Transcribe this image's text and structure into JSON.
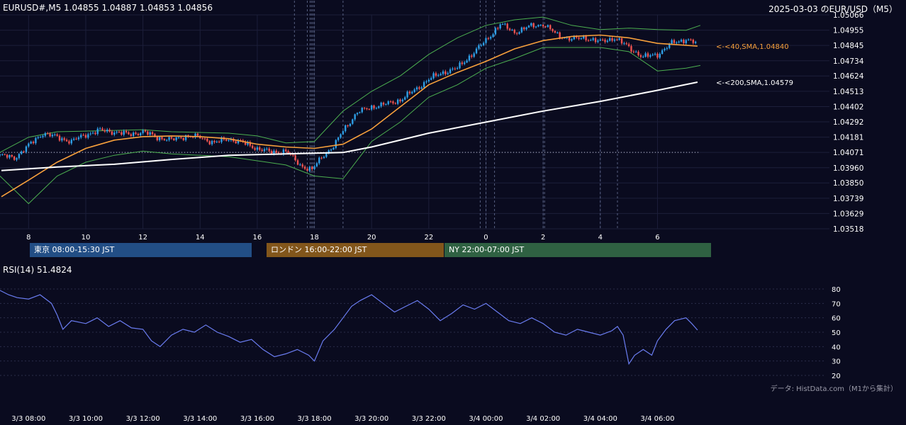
{
  "header": {
    "symbol_info": "EURUSD#,M5 1.04855 1.04887 1.04853 1.04856",
    "title": "2025-03-03 のEUR/USD（M5）"
  },
  "rsi_label": "RSI(14) 51.4824",
  "credit": "データ: HistData.com（M1から集計）",
  "sessions": {
    "tokyo": "東京 08:00-15:30 JST",
    "london": "ロンドン 16:00-22:00 JST",
    "ny": "NY 22:00-07:00 JST"
  },
  "colors": {
    "background": "#0a0b1f",
    "candle_up": "#2e9fe6",
    "candle_down": "#ef5350",
    "sma40": "#f7a03c",
    "sma200": "#ffffff",
    "bollinger": "#4caf50",
    "rsi_line": "#6a7cf0",
    "tokyo": "#224e85",
    "london": "#82561b",
    "ny": "#2f6142"
  },
  "chart_data": [
    {
      "type": "candlestick",
      "title": "2025-03-03 のEUR/USD（M5）",
      "y_ticks": [
        "1.05066",
        "1.04955",
        "1.04845",
        "1.04734",
        "1.04624",
        "1.04513",
        "1.04402",
        "1.04292",
        "1.04181",
        "1.04071",
        "1.03960",
        "1.03850",
        "1.03739",
        "1.03629",
        "1.03518"
      ],
      "ylim": [
        1.03518,
        1.05066
      ],
      "x_ticks": [
        "8",
        "10",
        "12",
        "14",
        "16",
        "18",
        "20",
        "22",
        "0",
        "2",
        "4",
        "6"
      ],
      "x_tick_hours": [
        8,
        10,
        12,
        14,
        16,
        18,
        20,
        22,
        24,
        26,
        28,
        30
      ],
      "xlim_hours": [
        7,
        31.8
      ],
      "last_close": 1.04856,
      "reference_line": 1.04071,
      "session_marker_hours": [
        17.3,
        17.75,
        17.85,
        17.9,
        17.95,
        18.0,
        19.0,
        23.8,
        24.0,
        24.3,
        26.0,
        26.05,
        28.0,
        28.6
      ],
      "series": [
        {
          "name": "SMA 40",
          "label": "<-<40,SMA,1.04840",
          "points": [
            [
              7.05,
              1.0375
            ],
            [
              8.0,
              1.0387
            ],
            [
              9.0,
              1.04
            ],
            [
              10.0,
              1.041
            ],
            [
              11.0,
              1.0416
            ],
            [
              12.0,
              1.04185
            ],
            [
              13.0,
              1.0419
            ],
            [
              14.0,
              1.04185
            ],
            [
              15.0,
              1.0417
            ],
            [
              16.0,
              1.0413
            ],
            [
              17.0,
              1.0411
            ],
            [
              18.0,
              1.041
            ],
            [
              19.0,
              1.0413
            ],
            [
              20.0,
              1.0424
            ],
            [
              21.0,
              1.044
            ],
            [
              22.0,
              1.0456
            ],
            [
              23.0,
              1.0465
            ],
            [
              24.0,
              1.0473
            ],
            [
              25.0,
              1.0482
            ],
            [
              26.0,
              1.0488
            ],
            [
              27.0,
              1.0491
            ],
            [
              28.0,
              1.0492
            ],
            [
              29.0,
              1.049
            ],
            [
              30.0,
              1.0486
            ],
            [
              31.4,
              1.0484
            ]
          ]
        },
        {
          "name": "SMA 200",
          "label": "<-<200,SMA,1.04579",
          "points": [
            [
              7.05,
              1.0394
            ],
            [
              9.0,
              1.03965
            ],
            [
              11.0,
              1.03985
            ],
            [
              13.0,
              1.0402
            ],
            [
              15.0,
              1.0405
            ],
            [
              17.0,
              1.0406
            ],
            [
              19.0,
              1.0407
            ],
            [
              20.0,
              1.0411
            ],
            [
              22.0,
              1.0421
            ],
            [
              24.0,
              1.0429
            ],
            [
              26.0,
              1.0437
            ],
            [
              28.0,
              1.0444
            ],
            [
              30.0,
              1.0452
            ],
            [
              31.4,
              1.04579
            ]
          ]
        }
      ],
      "bollinger": {
        "upper": [
          [
            7.0,
            1.04071
          ],
          [
            8.0,
            1.04181
          ],
          [
            9.0,
            1.0422
          ],
          [
            10.0,
            1.04225
          ],
          [
            11.0,
            1.0423
          ],
          [
            12.0,
            1.04235
          ],
          [
            13.0,
            1.0422
          ],
          [
            14.0,
            1.04215
          ],
          [
            15.0,
            1.0421
          ],
          [
            16.0,
            1.0419
          ],
          [
            17.0,
            1.0414
          ],
          [
            18.0,
            1.0415
          ],
          [
            19.0,
            1.0437
          ],
          [
            20.0,
            1.04513
          ],
          [
            21.0,
            1.04624
          ],
          [
            22.0,
            1.0478
          ],
          [
            23.0,
            1.049
          ],
          [
            24.0,
            1.0499
          ],
          [
            25.0,
            1.0503
          ],
          [
            26.0,
            1.0505
          ],
          [
            27.0,
            1.0499
          ],
          [
            28.0,
            1.0496
          ],
          [
            29.0,
            1.0497
          ],
          [
            30.0,
            1.0496
          ],
          [
            31.0,
            1.04955
          ],
          [
            31.5,
            1.0499
          ]
        ],
        "lower": [
          [
            7.0,
            1.039
          ],
          [
            8.0,
            1.037
          ],
          [
            9.0,
            1.039
          ],
          [
            10.0,
            1.04
          ],
          [
            11.0,
            1.0405
          ],
          [
            12.0,
            1.0408
          ],
          [
            13.0,
            1.0406
          ],
          [
            14.0,
            1.0405
          ],
          [
            15.0,
            1.0404
          ],
          [
            16.0,
            1.0401
          ],
          [
            17.0,
            1.0398
          ],
          [
            18.0,
            1.039
          ],
          [
            19.0,
            1.0388
          ],
          [
            20.0,
            1.0415
          ],
          [
            21.0,
            1.0429
          ],
          [
            22.0,
            1.0447
          ],
          [
            23.0,
            1.0456
          ],
          [
            24.0,
            1.0468
          ],
          [
            25.0,
            1.0475
          ],
          [
            26.0,
            1.0483
          ],
          [
            27.0,
            1.0483
          ],
          [
            28.0,
            1.0483
          ],
          [
            29.0,
            1.048
          ],
          [
            30.0,
            1.0466
          ],
          [
            31.0,
            1.0468
          ],
          [
            31.5,
            1.047
          ]
        ]
      },
      "price_path": [
        [
          7.0,
          1.0405
        ],
        [
          7.5,
          1.0403
        ],
        [
          8.0,
          1.0412
        ],
        [
          8.5,
          1.0421
        ],
        [
          9.0,
          1.0418
        ],
        [
          9.5,
          1.0415
        ],
        [
          10.0,
          1.042
        ],
        [
          10.5,
          1.0423
        ],
        [
          11.0,
          1.0422
        ],
        [
          11.5,
          1.042
        ],
        [
          12.0,
          1.0422
        ],
        [
          12.5,
          1.0418
        ],
        [
          13.0,
          1.0416
        ],
        [
          13.5,
          1.0419
        ],
        [
          14.0,
          1.0418
        ],
        [
          14.5,
          1.0414
        ],
        [
          15.0,
          1.0417
        ],
        [
          15.5,
          1.0414
        ],
        [
          16.0,
          1.041
        ],
        [
          16.5,
          1.0407
        ],
        [
          17.0,
          1.0408
        ],
        [
          17.5,
          1.0398
        ],
        [
          17.9,
          1.0394
        ],
        [
          18.3,
          1.0405
        ],
        [
          18.7,
          1.0412
        ],
        [
          19.0,
          1.0423
        ],
        [
          19.5,
          1.0436
        ],
        [
          20.0,
          1.044
        ],
        [
          20.5,
          1.0442
        ],
        [
          21.0,
          1.0445
        ],
        [
          21.5,
          1.0452
        ],
        [
          22.0,
          1.046
        ],
        [
          22.5,
          1.0465
        ],
        [
          23.0,
          1.0468
        ],
        [
          23.5,
          1.0478
        ],
        [
          24.0,
          1.0488
        ],
        [
          24.5,
          1.05
        ],
        [
          25.0,
          1.0494
        ],
        [
          25.5,
          1.0498
        ],
        [
          26.0,
          1.05
        ],
        [
          26.5,
          1.0492
        ],
        [
          27.0,
          1.0489
        ],
        [
          27.5,
          1.049
        ],
        [
          28.0,
          1.0487
        ],
        [
          28.5,
          1.049
        ],
        [
          29.0,
          1.0483
        ],
        [
          29.5,
          1.0476
        ],
        [
          30.0,
          1.0478
        ],
        [
          30.5,
          1.0486
        ],
        [
          31.0,
          1.0489
        ],
        [
          31.4,
          1.04856
        ]
      ]
    },
    {
      "type": "line",
      "name": "RSI(14)",
      "y_ticks": [
        "80",
        "70",
        "60",
        "50",
        "40",
        "30",
        "20"
      ],
      "ylim": [
        20,
        80
      ],
      "last_value": 51.4824,
      "x_tick_labels": [
        "3/3 08:00",
        "3/3 10:00",
        "3/3 12:00",
        "3/3 14:00",
        "3/3 16:00",
        "3/3 18:00",
        "3/3 20:00",
        "3/3 22:00",
        "3/4 00:00",
        "3/4 02:00",
        "3/4 04:00",
        "3/4 06:00"
      ],
      "x_tick_hours": [
        8,
        10,
        12,
        14,
        16,
        18,
        20,
        22,
        24,
        26,
        28,
        30
      ],
      "values": [
        [
          7.0,
          79
        ],
        [
          7.3,
          76
        ],
        [
          7.6,
          74
        ],
        [
          8.0,
          73
        ],
        [
          8.4,
          76
        ],
        [
          8.8,
          70
        ],
        [
          9.0,
          62
        ],
        [
          9.2,
          52
        ],
        [
          9.5,
          58
        ],
        [
          10.0,
          56
        ],
        [
          10.4,
          60
        ],
        [
          10.8,
          54
        ],
        [
          11.2,
          58
        ],
        [
          11.6,
          53
        ],
        [
          12.0,
          52
        ],
        [
          12.3,
          44
        ],
        [
          12.6,
          40
        ],
        [
          13.0,
          48
        ],
        [
          13.4,
          52
        ],
        [
          13.8,
          50
        ],
        [
          14.2,
          55
        ],
        [
          14.6,
          50
        ],
        [
          15.0,
          47
        ],
        [
          15.4,
          43
        ],
        [
          15.8,
          45
        ],
        [
          16.2,
          38
        ],
        [
          16.6,
          33
        ],
        [
          17.0,
          35
        ],
        [
          17.4,
          38
        ],
        [
          17.8,
          34
        ],
        [
          18.0,
          30
        ],
        [
          18.3,
          44
        ],
        [
          18.7,
          52
        ],
        [
          19.0,
          60
        ],
        [
          19.3,
          68
        ],
        [
          19.6,
          72
        ],
        [
          20.0,
          76
        ],
        [
          20.4,
          70
        ],
        [
          20.8,
          64
        ],
        [
          21.2,
          68
        ],
        [
          21.6,
          72
        ],
        [
          22.0,
          66
        ],
        [
          22.4,
          58
        ],
        [
          22.8,
          63
        ],
        [
          23.2,
          69
        ],
        [
          23.6,
          66
        ],
        [
          24.0,
          70
        ],
        [
          24.4,
          64
        ],
        [
          24.8,
          58
        ],
        [
          25.2,
          56
        ],
        [
          25.6,
          60
        ],
        [
          26.0,
          56
        ],
        [
          26.4,
          50
        ],
        [
          26.8,
          48
        ],
        [
          27.2,
          52
        ],
        [
          27.6,
          50
        ],
        [
          28.0,
          48
        ],
        [
          28.4,
          51
        ],
        [
          28.6,
          54
        ],
        [
          28.8,
          48
        ],
        [
          29.0,
          28
        ],
        [
          29.2,
          34
        ],
        [
          29.5,
          38
        ],
        [
          29.8,
          34
        ],
        [
          30.0,
          44
        ],
        [
          30.3,
          52
        ],
        [
          30.6,
          58
        ],
        [
          31.0,
          60
        ],
        [
          31.2,
          56
        ],
        [
          31.4,
          51.48
        ]
      ]
    }
  ]
}
